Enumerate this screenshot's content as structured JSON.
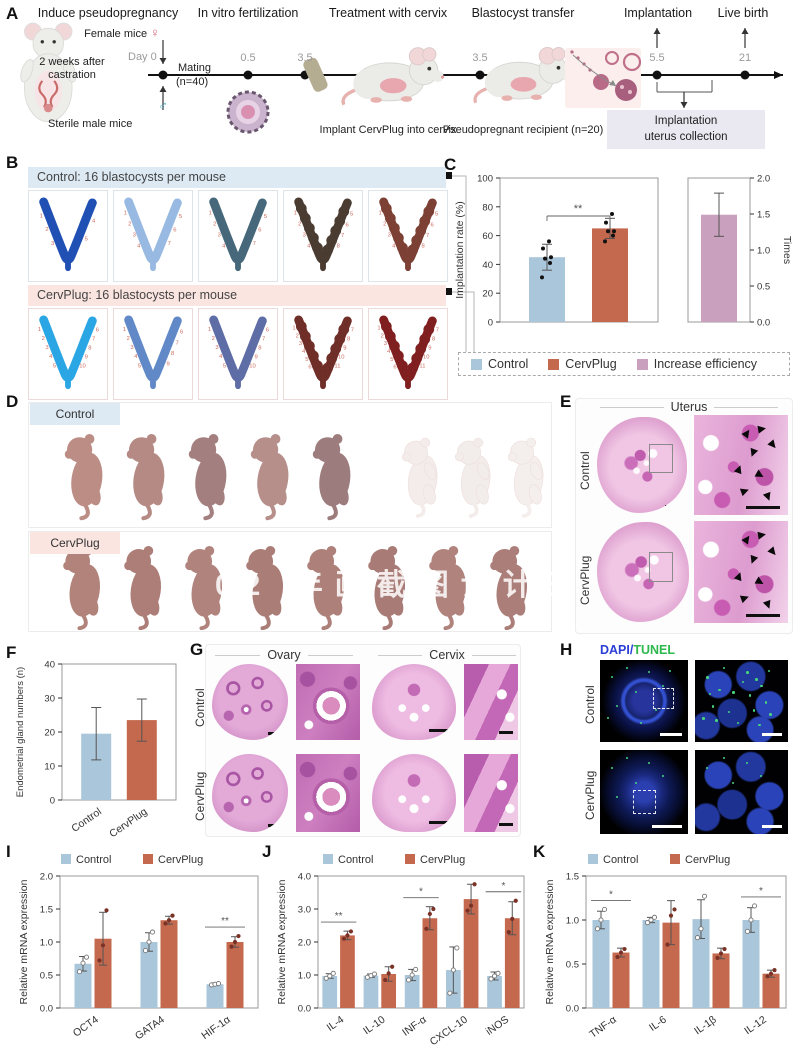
{
  "groups": {
    "control": "Control",
    "cervplug": "CervPlug"
  },
  "colors": {
    "control": "#aac6da",
    "cervplug": "#c4684e",
    "efficiency": "#c9a0bd",
    "header_blue": "#ddeaf3",
    "header_pink": "#fbe5e1",
    "dapi_blue": "#2b3fd6",
    "tunel_green": "#2db84d",
    "point_dark": "#7a3226"
  },
  "panelA": {
    "label": "A",
    "steps": [
      "Induce pseudopregnancy",
      "In vitro fertilization",
      "Treatment with cervix",
      "Blastocyst transfer",
      "Implantation",
      "Live birth"
    ],
    "female_label": "Female mice",
    "female_symbol": "♀",
    "male_symbol": "♂",
    "day0": "Day 0",
    "castration_l1": "2 weeks after",
    "castration_l2": "castration",
    "sterile": "Sterile male mice",
    "mating_l1": "Mating",
    "mating_l2": "(n=40)",
    "times": {
      "t05": "0.5",
      "t35a": "3.5",
      "t35b": "3.5",
      "t55": "5.5",
      "t21": "21"
    },
    "implant": "Implant CervPlug into cervix",
    "recipient": "Pseudopregnant recipient (n=20)",
    "collection_l1": "Implantation",
    "collection_l2": "uterus collection"
  },
  "panelB": {
    "label": "B",
    "control_header": "Control: 16 blastocysts per mouse",
    "cervplug_header": "CervPlug: 16 blastocysts per mouse",
    "control_specimens": [
      {
        "color": "#2050b4",
        "bumpy": false,
        "sites": 5
      },
      {
        "color": "#97b9e2",
        "bumpy": false,
        "sites": 7
      },
      {
        "color": "#46687a",
        "bumpy": false,
        "sites": 7
      },
      {
        "color": "#4b3c32",
        "bumpy": true,
        "sites": 8
      },
      {
        "color": "#7c4034",
        "bumpy": true,
        "sites": 8
      }
    ],
    "cervplug_specimens": [
      {
        "color": "#2ba6e4",
        "bumpy": false,
        "sites": 10
      },
      {
        "color": "#6189c8",
        "bumpy": false,
        "sites": 9
      },
      {
        "color": "#5e6da5",
        "bumpy": false,
        "sites": 10
      },
      {
        "color": "#6f2e28",
        "bumpy": true,
        "sites": 11
      },
      {
        "color": "#801f20",
        "bumpy": true,
        "sites": 11
      }
    ]
  },
  "panelC": {
    "label": "C",
    "efficiency_label": "Increase efficiency"
  },
  "panelD": {
    "label": "D",
    "watermark": "02 年画截图设计三",
    "control_pups": [
      "#bb8d85",
      "#b58a84",
      "#a37f7f",
      "#b68e8a",
      "#9d7c7e"
    ],
    "pale_pups": [
      "#f3ecea",
      "#f2eceb",
      "#f4eeec"
    ],
    "cervplug_pups": [
      "#b2837b",
      "#ad7e78",
      "#b0837d",
      "#aa7d77",
      "#ad807a",
      "#a87b76",
      "#b0837d",
      "#ab7e79"
    ]
  },
  "panelE": {
    "label": "E",
    "title": "Uterus"
  },
  "panelF": {
    "label": "F"
  },
  "panelG": {
    "label": "G",
    "ovary": "Ovary",
    "cervix": "Cervix"
  },
  "panelH": {
    "label": "H",
    "dapi": "DAPI",
    "sep": "/",
    "tunel": "TUNEL"
  },
  "panelI": {
    "label": "I"
  },
  "panelJ": {
    "label": "J"
  },
  "panelK": {
    "label": "K"
  },
  "chart_data": [
    {
      "panel": "C",
      "type": "bar",
      "left_axis": {
        "label": "Implantation rate (%)",
        "ticks": [
          "0",
          "20",
          "40",
          "60",
          "80",
          "100"
        ],
        "lim": [
          0,
          100
        ]
      },
      "right_axis": {
        "label": "Times",
        "ticks": [
          "0.0",
          "0.5",
          "1.0",
          "1.5",
          "2.0"
        ],
        "lim": [
          0,
          2
        ]
      },
      "bars": [
        {
          "name": "Control",
          "value": 45,
          "err": 9,
          "points": [
            31,
            41,
            44,
            45,
            51,
            56
          ]
        },
        {
          "name": "CervPlug",
          "value": 65,
          "err": 7,
          "points": [
            56,
            60,
            63,
            63,
            69,
            75
          ]
        }
      ],
      "right_bar": {
        "name": "Increase efficiency",
        "value": 1.49,
        "err": 0.3
      },
      "significance": "**",
      "legend": [
        "Control",
        "CervPlug",
        "Increase efficiency"
      ]
    },
    {
      "panel": "F",
      "type": "bar",
      "ylabel": "Endometrial gland numbers (n)",
      "ylim": [
        0,
        40
      ],
      "yticks": [
        "0",
        "10",
        "20",
        "30",
        "40"
      ],
      "categories": [
        "Control",
        "CervPlug"
      ],
      "values": [
        19.5,
        23.5
      ],
      "errors": [
        7.7,
        6.2
      ]
    },
    {
      "panel": "I",
      "type": "grouped-bar",
      "ylabel": "Relative mRNA expression",
      "ylim": [
        0,
        2
      ],
      "yticks": [
        "0.0",
        "0.5",
        "1.0",
        "1.5",
        "2.0"
      ],
      "categories": [
        "OCT4",
        "GATA4",
        "HIF-1α"
      ],
      "series": [
        {
          "name": "Control",
          "values": [
            0.67,
            1.0,
            0.36
          ],
          "errors": [
            0.11,
            0.14,
            0.02
          ],
          "points": [
            [
              0.55,
              0.68,
              0.77
            ],
            [
              0.87,
              1.0,
              1.15
            ],
            [
              0.35,
              0.36,
              0.37
            ]
          ]
        },
        {
          "name": "CervPlug",
          "values": [
            1.05,
            1.33,
            1.0
          ],
          "errors": [
            0.4,
            0.06,
            0.08
          ],
          "points": [
            [
              0.72,
              0.95,
              1.48
            ],
            [
              1.28,
              1.33,
              1.4
            ],
            [
              0.93,
              1.0,
              1.09
            ]
          ]
        }
      ],
      "significance": [
        {
          "category": "HIF-1α",
          "text": "**"
        }
      ]
    },
    {
      "panel": "J",
      "type": "grouped-bar",
      "ylabel": "Relative mRNA expression",
      "ylim": [
        0,
        4
      ],
      "yticks": [
        "0.0",
        "1.0",
        "2.0",
        "3.0",
        "4.0"
      ],
      "categories": [
        "IL-4",
        "IL-10",
        "INF-α",
        "CXCL-10",
        "iNOS"
      ],
      "series": [
        {
          "name": "Control",
          "values": [
            0.97,
            0.98,
            1.0,
            1.15,
            0.97
          ],
          "errors": [
            0.07,
            0.05,
            0.17,
            0.7,
            0.12
          ],
          "points": [
            [
              0.9,
              0.97,
              1.05
            ],
            [
              0.93,
              0.98,
              1.03
            ],
            [
              0.85,
              1.0,
              1.17
            ],
            [
              0.45,
              1.15,
              1.82
            ],
            [
              0.88,
              0.97,
              1.05
            ]
          ]
        },
        {
          "name": "CervPlug",
          "values": [
            2.2,
            1.03,
            2.72,
            3.3,
            2.72
          ],
          "errors": [
            0.13,
            0.22,
            0.35,
            0.45,
            0.5
          ],
          "points": [
            [
              2.1,
              2.2,
              2.32
            ],
            [
              0.85,
              1.05,
              1.25
            ],
            [
              2.4,
              2.85,
              3.0
            ],
            [
              2.95,
              3.1,
              3.75
            ],
            [
              2.3,
              2.7,
              3.25
            ]
          ]
        }
      ],
      "significance": [
        {
          "category": "IL-4",
          "text": "**"
        },
        {
          "category": "INF-α",
          "text": "*"
        },
        {
          "category": "iNOS",
          "text": "*"
        }
      ]
    },
    {
      "panel": "K",
      "type": "grouped-bar",
      "ylabel": "Relative mRNA expression",
      "ylim": [
        0,
        1.5
      ],
      "yticks": [
        "0.0",
        "0.5",
        "1.0",
        "1.5"
      ],
      "categories": [
        "TNF-α",
        "IL-6",
        "IL-1β",
        "IL-12"
      ],
      "series": [
        {
          "name": "Control",
          "values": [
            1.0,
            1.0,
            1.01,
            1.0
          ],
          "errors": [
            0.1,
            0.03,
            0.22,
            0.14
          ],
          "points": [
            [
              0.9,
              1.0,
              1.12
            ],
            [
              0.97,
              1.0,
              1.03
            ],
            [
              0.8,
              0.9,
              1.27
            ],
            [
              0.87,
              1.0,
              1.16
            ]
          ]
        },
        {
          "name": "CervPlug",
          "values": [
            0.63,
            0.97,
            0.62,
            0.39
          ],
          "errors": [
            0.05,
            0.25,
            0.06,
            0.04
          ],
          "points": [
            [
              0.58,
              0.63,
              0.67
            ],
            [
              0.72,
              1.05,
              1.12
            ],
            [
              0.57,
              0.62,
              0.67
            ],
            [
              0.36,
              0.39,
              0.43
            ]
          ]
        }
      ],
      "significance": [
        {
          "category": "TNF-α",
          "text": "*"
        },
        {
          "category": "IL-12",
          "text": "*"
        }
      ]
    }
  ]
}
